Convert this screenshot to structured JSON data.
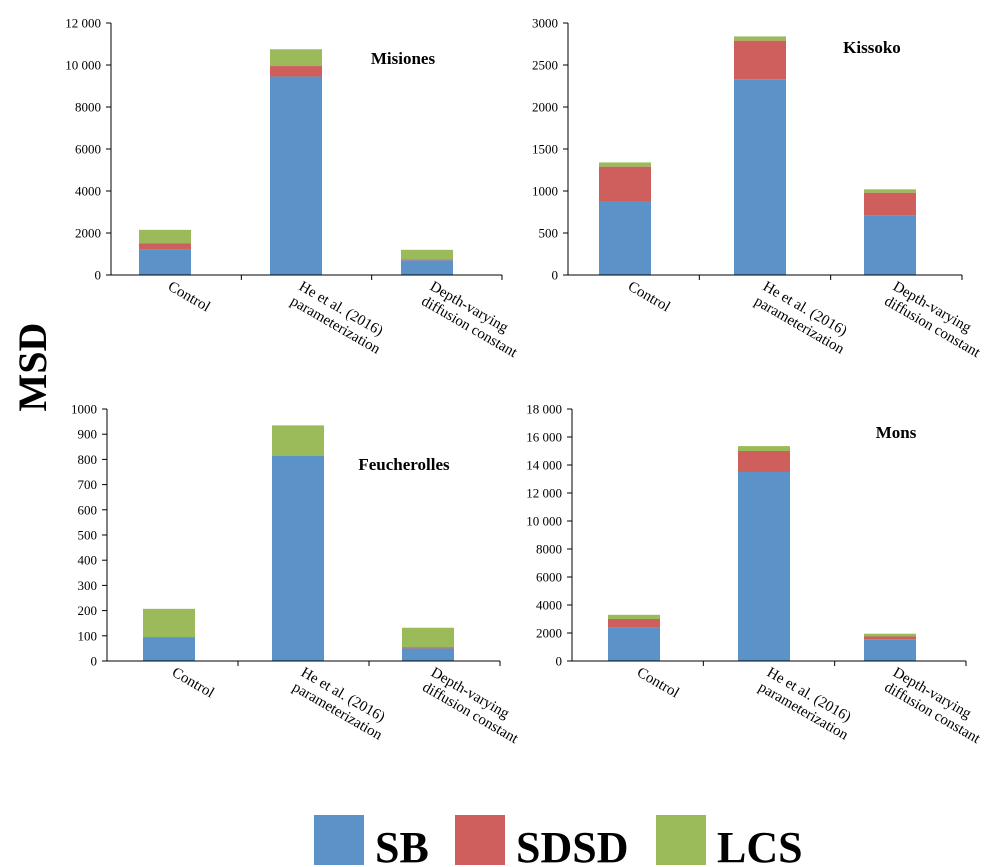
{
  "ylabel": "MSD",
  "categories": [
    "Control",
    "He et al. (2016) parameterization",
    "Depth-varying diffusion constant"
  ],
  "category_lines": [
    [
      "Control"
    ],
    [
      "He et al.  (2016)",
      "parameterization"
    ],
    [
      "Depth-varying",
      "diffusion constant"
    ]
  ],
  "legend": [
    {
      "label": "SB",
      "color": "#5b93c9"
    },
    {
      "label": "SDSD",
      "color": "#ce5f5c"
    },
    {
      "label": "LCS",
      "color": "#9bbb5b"
    }
  ],
  "chart_data": [
    {
      "type": "bar",
      "stacked": true,
      "title": "Misiones",
      "categories": [
        "Control",
        "He et al. (2016) parameterization",
        "Depth-varying diffusion constant"
      ],
      "ylim": [
        0,
        12000
      ],
      "yticks": [
        0,
        2000,
        4000,
        6000,
        8000,
        10000,
        12000
      ],
      "yticklabels": [
        "0",
        "2000",
        "4000",
        "6000",
        "8000",
        "10 000",
        "12 000"
      ],
      "series": [
        {
          "name": "SB",
          "values": [
            1200,
            9450,
            700
          ]
        },
        {
          "name": "SDSD",
          "values": [
            300,
            500,
            50
          ]
        },
        {
          "name": "LCS",
          "values": [
            650,
            800,
            450
          ]
        }
      ]
    },
    {
      "type": "bar",
      "stacked": true,
      "title": "Kissoko",
      "categories": [
        "Control",
        "He et al. (2016) parameterization",
        "Depth-varying diffusion constant"
      ],
      "ylim": [
        0,
        3000
      ],
      "yticks": [
        0,
        500,
        1000,
        1500,
        2000,
        2500,
        3000
      ],
      "yticklabels": [
        "0",
        "500",
        "1000",
        "1500",
        "2000",
        "2500",
        "3000"
      ],
      "series": [
        {
          "name": "SB",
          "values": [
            870,
            2330,
            710
          ]
        },
        {
          "name": "SDSD",
          "values": [
            420,
            460,
            270
          ]
        },
        {
          "name": "LCS",
          "values": [
            50,
            50,
            40
          ]
        }
      ]
    },
    {
      "type": "bar",
      "stacked": true,
      "title": "Feucherolles",
      "categories": [
        "Control",
        "He et al. (2016) parameterization",
        "Depth-varying diffusion constant"
      ],
      "ylim": [
        0,
        1000
      ],
      "yticks": [
        0,
        100,
        200,
        300,
        400,
        500,
        600,
        700,
        800,
        900,
        1000
      ],
      "yticklabels": [
        "0",
        "100",
        "200",
        "300",
        "400",
        "500",
        "600",
        "700",
        "800",
        "900",
        "1000"
      ],
      "series": [
        {
          "name": "SB",
          "values": [
            95,
            815,
            50
          ]
        },
        {
          "name": "SDSD",
          "values": [
            0,
            0,
            5
          ]
        },
        {
          "name": "LCS",
          "values": [
            112,
            120,
            77
          ]
        }
      ]
    },
    {
      "type": "bar",
      "stacked": true,
      "title": "Mons",
      "categories": [
        "Control",
        "He et al. (2016) parameterization",
        "Depth-varying diffusion constant"
      ],
      "ylim": [
        0,
        18000
      ],
      "yticks": [
        0,
        2000,
        4000,
        6000,
        8000,
        10000,
        12000,
        14000,
        16000,
        18000
      ],
      "yticklabels": [
        "0",
        "2000",
        "4000",
        "6000",
        "8000",
        "10 000",
        "12 000",
        "14 000",
        "16 000",
        "18 000"
      ],
      "series": [
        {
          "name": "SB",
          "values": [
            2400,
            13500,
            1550
          ]
        },
        {
          "name": "SDSD",
          "values": [
            600,
            1500,
            200
          ]
        },
        {
          "name": "LCS",
          "values": [
            300,
            350,
            200
          ]
        }
      ]
    }
  ]
}
